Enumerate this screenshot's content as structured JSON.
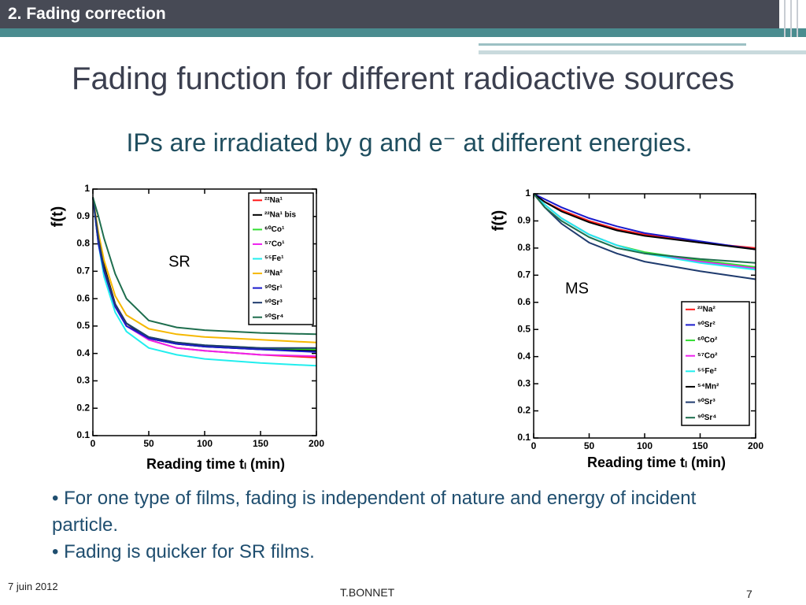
{
  "header": "2. Fading correction",
  "title": "Fading function for different radioactive sources",
  "subtitle": "IPs are irradiated by g and e⁻ at different energies.",
  "chart_data": [
    {
      "type": "line",
      "annotation": "SR",
      "ylabel": "f(t)",
      "xlabel": "Reading time tₗ (min)",
      "x": [
        0,
        5,
        10,
        20,
        30,
        50,
        75,
        100,
        150,
        200
      ],
      "xlim": [
        0,
        200
      ],
      "ylim": [
        0.1,
        1
      ],
      "xticks": [
        0,
        50,
        100,
        150,
        200
      ],
      "yticks": [
        0.1,
        0.2,
        0.3,
        0.4,
        0.5,
        0.6,
        0.7,
        0.8,
        0.9,
        1
      ],
      "series": [
        {
          "name": "²²Na¹",
          "color": "#ff1a1a",
          "values": [
            0.97,
            0.82,
            0.72,
            0.58,
            0.51,
            0.45,
            0.42,
            0.41,
            0.395,
            0.385
          ]
        },
        {
          "name": "²²Na¹ bis",
          "color": "#000000",
          "values": [
            0.97,
            0.82,
            0.72,
            0.58,
            0.51,
            0.455,
            0.435,
            0.425,
            0.415,
            0.41
          ]
        },
        {
          "name": "⁶⁰Co¹",
          "color": "#33dd33",
          "values": [
            0.97,
            0.8,
            0.7,
            0.57,
            0.51,
            0.46,
            0.44,
            0.43,
            0.42,
            0.415
          ]
        },
        {
          "name": "⁵⁷Co¹",
          "color": "#ee22ee",
          "values": [
            0.97,
            0.8,
            0.7,
            0.57,
            0.5,
            0.45,
            0.42,
            0.41,
            0.395,
            0.39
          ]
        },
        {
          "name": "⁵⁵Fe¹",
          "color": "#22eeee",
          "values": [
            0.97,
            0.8,
            0.68,
            0.55,
            0.48,
            0.42,
            0.395,
            0.38,
            0.365,
            0.355
          ]
        },
        {
          "name": "²²Na²",
          "color": "#f5b800",
          "values": [
            0.97,
            0.84,
            0.74,
            0.61,
            0.54,
            0.49,
            0.47,
            0.46,
            0.45,
            0.44
          ]
        },
        {
          "name": "⁹⁰Sr¹",
          "color": "#1a1acc",
          "values": [
            0.97,
            0.8,
            0.7,
            0.57,
            0.5,
            0.455,
            0.435,
            0.425,
            0.415,
            0.405
          ]
        },
        {
          "name": "⁹⁰Sr³",
          "color": "#1f3b6e",
          "values": [
            0.97,
            0.82,
            0.71,
            0.58,
            0.51,
            0.46,
            0.44,
            0.43,
            0.42,
            0.42
          ]
        },
        {
          "name": "⁹⁰Sr⁴",
          "color": "#1e6e4e",
          "values": [
            0.97,
            0.9,
            0.82,
            0.69,
            0.6,
            0.52,
            0.495,
            0.485,
            0.475,
            0.47
          ]
        }
      ]
    },
    {
      "type": "line",
      "annotation": "MS",
      "ylabel": "f(t)",
      "xlabel": "Reading time tₗ (min)",
      "x": [
        0,
        10,
        25,
        50,
        75,
        100,
        150,
        200
      ],
      "xlim": [
        0,
        200
      ],
      "ylim": [
        0.1,
        1
      ],
      "xticks": [
        0,
        50,
        100,
        150,
        200
      ],
      "yticks": [
        0.1,
        0.2,
        0.3,
        0.4,
        0.5,
        0.6,
        0.7,
        0.8,
        0.9,
        1
      ],
      "series": [
        {
          "name": "²²Na²",
          "color": "#ff1a1a",
          "values": [
            1,
            0.97,
            0.94,
            0.9,
            0.87,
            0.85,
            0.82,
            0.8
          ]
        },
        {
          "name": "⁹⁰Sr²",
          "color": "#1a1acc",
          "values": [
            1,
            0.98,
            0.95,
            0.91,
            0.88,
            0.855,
            0.825,
            0.795
          ]
        },
        {
          "name": "⁶⁰Co²",
          "color": "#33dd33",
          "values": [
            1,
            0.96,
            0.91,
            0.85,
            0.81,
            0.785,
            0.755,
            0.73
          ]
        },
        {
          "name": "⁵⁷Co²",
          "color": "#ee22ee",
          "values": [
            1,
            0.96,
            0.91,
            0.85,
            0.81,
            0.78,
            0.75,
            0.725
          ]
        },
        {
          "name": "⁵⁵Fe²",
          "color": "#22eeee",
          "values": [
            1,
            0.96,
            0.91,
            0.85,
            0.81,
            0.78,
            0.745,
            0.72
          ]
        },
        {
          "name": "⁵⁴Mn²",
          "color": "#000000",
          "values": [
            1,
            0.97,
            0.935,
            0.895,
            0.865,
            0.845,
            0.82,
            0.795
          ]
        },
        {
          "name": "⁹⁰Sr³",
          "color": "#1f3b6e",
          "values": [
            1,
            0.95,
            0.89,
            0.82,
            0.78,
            0.75,
            0.715,
            0.685
          ]
        },
        {
          "name": "⁹⁰Sr⁴",
          "color": "#1e6e4e",
          "values": [
            1,
            0.95,
            0.9,
            0.84,
            0.8,
            0.78,
            0.76,
            0.745
          ]
        }
      ]
    }
  ],
  "bullets": [
    "For one type of films, fading is independent of nature and energy of incident particle.",
    "Fading is quicker for SR films."
  ],
  "footer": {
    "date": "7  juin 2012",
    "author": "T.BONNET",
    "page": "7"
  }
}
